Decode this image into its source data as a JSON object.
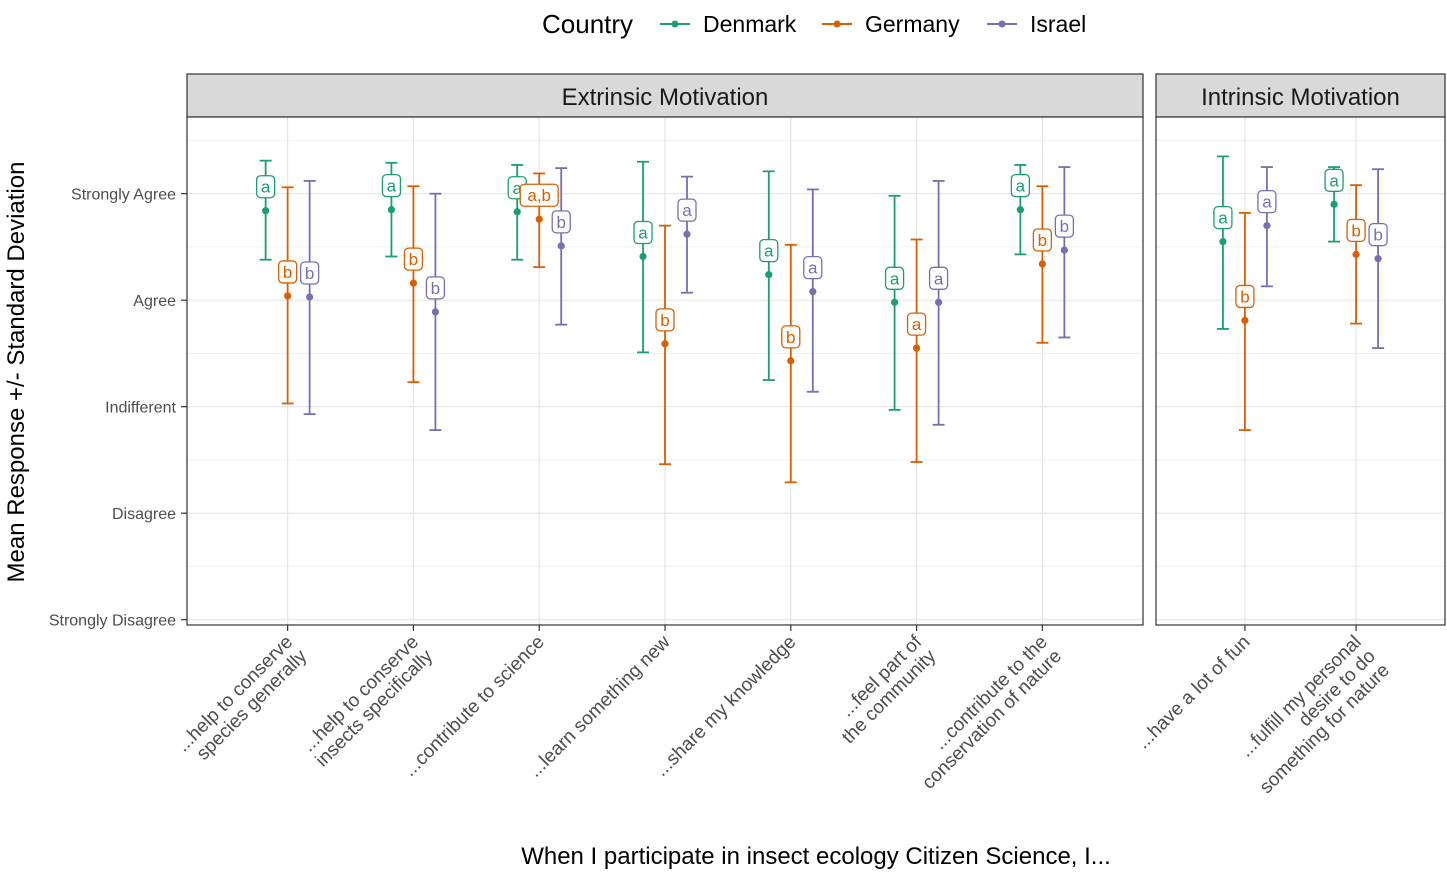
{
  "chart_data": {
    "type": "errorbar",
    "xlabel": "When I participate in insect ecology Citizen Science, I...",
    "ylabel": "Mean Response +/- Standard Deviation",
    "y_ticks": [
      {
        "value": 1,
        "label": "Strongly Disagree"
      },
      {
        "value": 2,
        "label": "Disagree"
      },
      {
        "value": 3,
        "label": "Indifferent"
      },
      {
        "value": 4,
        "label": "Agree"
      },
      {
        "value": 5,
        "label": "Strongly Agree"
      }
    ],
    "ylim": [
      0.95,
      5.72
    ],
    "grid": true,
    "legend": {
      "title": "Country",
      "position": "top",
      "entries": [
        {
          "name": "Denmark",
          "color": "#1b9e77"
        },
        {
          "name": "Germany",
          "color": "#d95f02"
        },
        {
          "name": "Israel",
          "color": "#7570b3"
        }
      ]
    },
    "panels": [
      {
        "title": "Extrinsic Motivation",
        "categories": [
          {
            "label": [
              "...help to conserve",
              "species generally"
            ],
            "points": [
              {
                "country": "Denmark",
                "mean": 4.84,
                "lower": 4.38,
                "upper": 5.31,
                "letter": "a"
              },
              {
                "country": "Germany",
                "mean": 4.04,
                "lower": 3.03,
                "upper": 5.06,
                "letter": "b"
              },
              {
                "country": "Israel",
                "mean": 4.03,
                "lower": 2.93,
                "upper": 5.12,
                "letter": "b"
              }
            ]
          },
          {
            "label": [
              "...help to conserve",
              "insects specifically"
            ],
            "points": [
              {
                "country": "Denmark",
                "mean": 4.85,
                "lower": 4.41,
                "upper": 5.29,
                "letter": "a"
              },
              {
                "country": "Germany",
                "mean": 4.16,
                "lower": 3.23,
                "upper": 5.07,
                "letter": "b"
              },
              {
                "country": "Israel",
                "mean": 3.89,
                "lower": 2.78,
                "upper": 5.0,
                "letter": "b"
              }
            ]
          },
          {
            "label": [
              "...contribute to science"
            ],
            "points": [
              {
                "country": "Denmark",
                "mean": 4.83,
                "lower": 4.38,
                "upper": 5.27,
                "letter": "a"
              },
              {
                "country": "Germany",
                "mean": 4.76,
                "lower": 4.31,
                "upper": 5.19,
                "letter": "a,b"
              },
              {
                "country": "Israel",
                "mean": 4.51,
                "lower": 3.77,
                "upper": 5.24,
                "letter": "b"
              }
            ]
          },
          {
            "label": [
              "...learn something new"
            ],
            "points": [
              {
                "country": "Denmark",
                "mean": 4.41,
                "lower": 3.51,
                "upper": 5.3,
                "letter": "a"
              },
              {
                "country": "Germany",
                "mean": 3.59,
                "lower": 2.46,
                "upper": 4.7,
                "letter": "b"
              },
              {
                "country": "Israel",
                "mean": 4.62,
                "lower": 4.07,
                "upper": 5.16,
                "letter": "a"
              }
            ]
          },
          {
            "label": [
              "...share my knowledge"
            ],
            "points": [
              {
                "country": "Denmark",
                "mean": 4.24,
                "lower": 3.25,
                "upper": 5.21,
                "letter": "a"
              },
              {
                "country": "Germany",
                "mean": 3.43,
                "lower": 2.29,
                "upper": 4.52,
                "letter": "b"
              },
              {
                "country": "Israel",
                "mean": 4.08,
                "lower": 3.14,
                "upper": 5.04,
                "letter": "a"
              }
            ]
          },
          {
            "label": [
              "...feel part of",
              "the community"
            ],
            "points": [
              {
                "country": "Denmark",
                "mean": 3.98,
                "lower": 2.97,
                "upper": 4.98,
                "letter": "a"
              },
              {
                "country": "Germany",
                "mean": 3.55,
                "lower": 2.48,
                "upper": 4.57,
                "letter": "a"
              },
              {
                "country": "Israel",
                "mean": 3.98,
                "lower": 2.83,
                "upper": 5.12,
                "letter": "a"
              }
            ]
          },
          {
            "label": [
              "...contribute to the",
              "conservation of nature"
            ],
            "points": [
              {
                "country": "Denmark",
                "mean": 4.85,
                "lower": 4.43,
                "upper": 5.27,
                "letter": "a"
              },
              {
                "country": "Germany",
                "mean": 4.34,
                "lower": 3.6,
                "upper": 5.07,
                "letter": "b"
              },
              {
                "country": "Israel",
                "mean": 4.47,
                "lower": 3.65,
                "upper": 5.25,
                "letter": "b"
              }
            ]
          }
        ]
      },
      {
        "title": "Intrinsic Motivation",
        "categories": [
          {
            "label": [
              "...have a lot of fun"
            ],
            "points": [
              {
                "country": "Denmark",
                "mean": 4.55,
                "lower": 3.73,
                "upper": 5.35,
                "letter": "a"
              },
              {
                "country": "Germany",
                "mean": 3.81,
                "lower": 2.78,
                "upper": 4.82,
                "letter": "b"
              },
              {
                "country": "Israel",
                "mean": 4.7,
                "lower": 4.13,
                "upper": 5.25,
                "letter": "a"
              }
            ]
          },
          {
            "label": [
              "...fulfill my personal",
              "desire to do",
              "something for nature"
            ],
            "points": [
              {
                "country": "Denmark",
                "mean": 4.9,
                "lower": 4.55,
                "upper": 5.25,
                "letter": "a"
              },
              {
                "country": "Germany",
                "mean": 4.43,
                "lower": 3.78,
                "upper": 5.08,
                "letter": "b"
              },
              {
                "country": "Israel",
                "mean": 4.39,
                "lower": 3.55,
                "upper": 5.23,
                "letter": "b"
              }
            ]
          }
        ]
      }
    ]
  }
}
